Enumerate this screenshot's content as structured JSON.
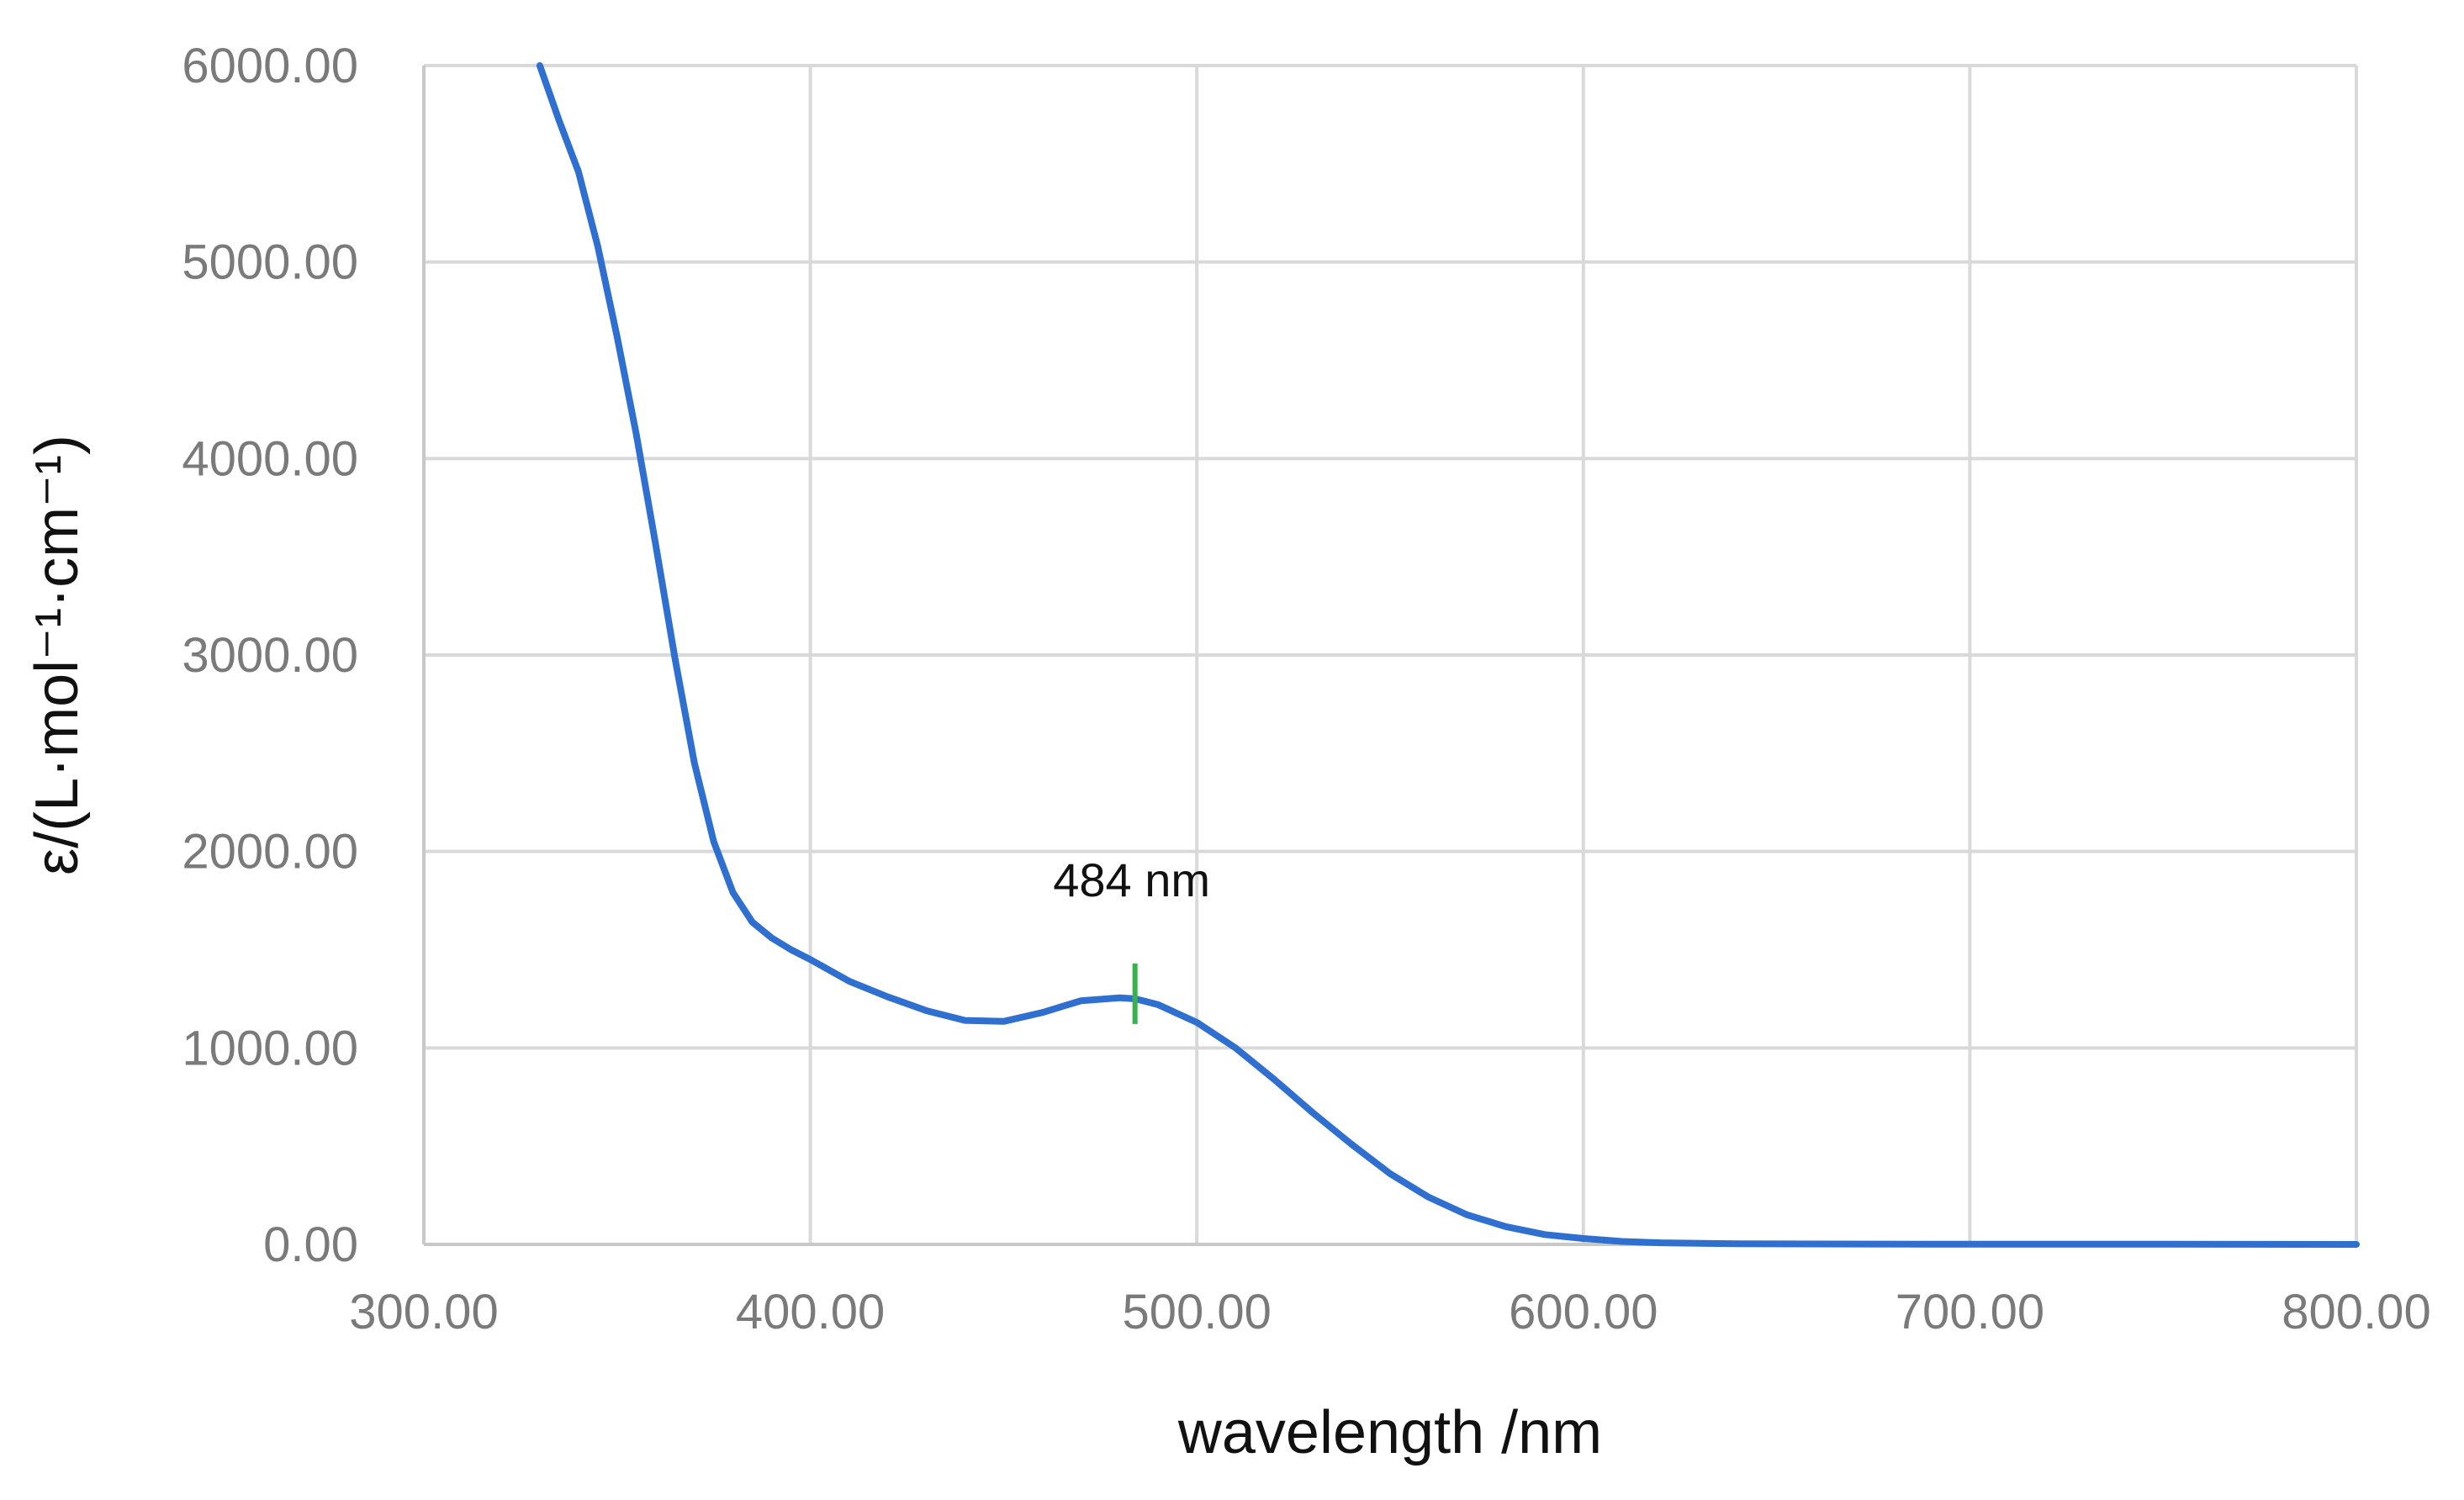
{
  "chart_data": {
    "type": "line",
    "title": "",
    "xlabel": "wavelength /nm",
    "ylabel": "ε/(L·mol⁻¹·cm⁻¹)",
    "xlim": [
      300,
      800
    ],
    "ylim": [
      0,
      6000
    ],
    "x_ticks": [
      300,
      400,
      500,
      600,
      700,
      800
    ],
    "x_tick_labels": [
      "300.00",
      "400.00",
      "500.00",
      "600.00",
      "700.00",
      "800.00"
    ],
    "y_ticks": [
      0,
      1000,
      2000,
      3000,
      4000,
      5000,
      6000
    ],
    "y_tick_labels": [
      "0.00",
      "1000.00",
      "2000.00",
      "3000.00",
      "4000.00",
      "5000.00",
      "6000.00"
    ],
    "grid": true,
    "legend": "none",
    "series": [
      {
        "color": "#2f6fd0",
        "x": [
          330,
          335,
          340,
          345,
          350,
          355,
          360,
          365,
          370,
          375,
          380,
          385,
          390,
          395,
          400,
          410,
          420,
          430,
          440,
          450,
          460,
          470,
          480,
          484,
          490,
          500,
          510,
          520,
          530,
          540,
          550,
          560,
          570,
          580,
          590,
          600,
          610,
          620,
          640,
          660,
          700,
          750,
          800
        ],
        "y": [
          6000,
          5720,
          5460,
          5080,
          4620,
          4120,
          3560,
          2980,
          2450,
          2050,
          1790,
          1640,
          1560,
          1500,
          1450,
          1340,
          1260,
          1190,
          1140,
          1135,
          1180,
          1240,
          1255,
          1250,
          1220,
          1130,
          1000,
          840,
          670,
          510,
          360,
          240,
          150,
          90,
          50,
          30,
          15,
          8,
          3,
          2,
          1,
          1,
          0
        ]
      }
    ],
    "annotations": [
      {
        "text": "484 nm",
        "x": 484,
        "y": 1250,
        "marker_color": "#37b24d"
      }
    ]
  }
}
